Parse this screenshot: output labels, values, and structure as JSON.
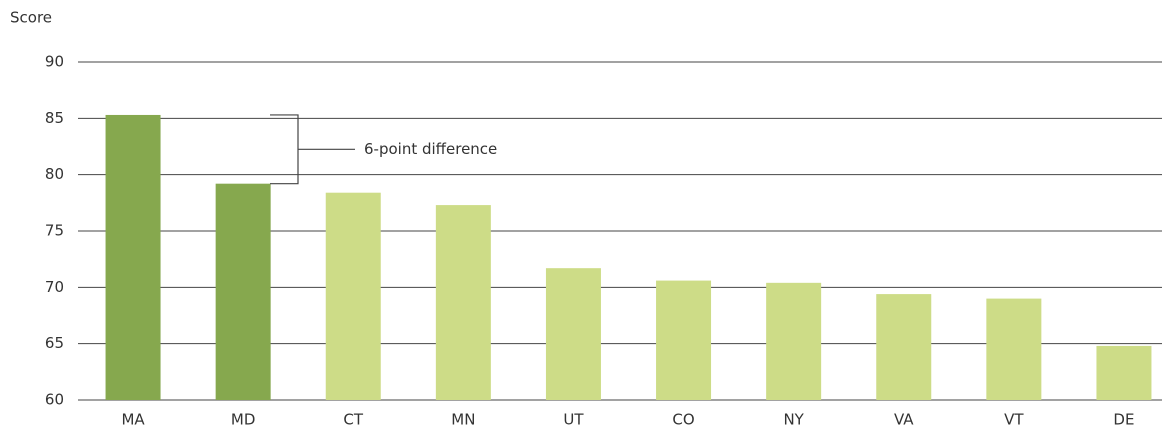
{
  "chart_data": {
    "type": "bar",
    "y_axis_label": "Score",
    "categories": [
      "MA",
      "MD",
      "CT",
      "MN",
      "UT",
      "CO",
      "NY",
      "VA",
      "VT",
      "DE"
    ],
    "values": [
      85.3,
      79.2,
      78.4,
      77.3,
      71.7,
      70.6,
      70.4,
      69.4,
      69.0,
      64.8
    ],
    "colors": [
      "#86a84e",
      "#86a84e",
      "#cddc87",
      "#cddc87",
      "#cddc87",
      "#cddc87",
      "#cddc87",
      "#cddc87",
      "#cddc87",
      "#cddc87"
    ],
    "ylim": [
      60,
      90
    ],
    "yticks": [
      60,
      65,
      70,
      75,
      80,
      85,
      90
    ],
    "grid": true,
    "annotation": "6-point difference"
  }
}
